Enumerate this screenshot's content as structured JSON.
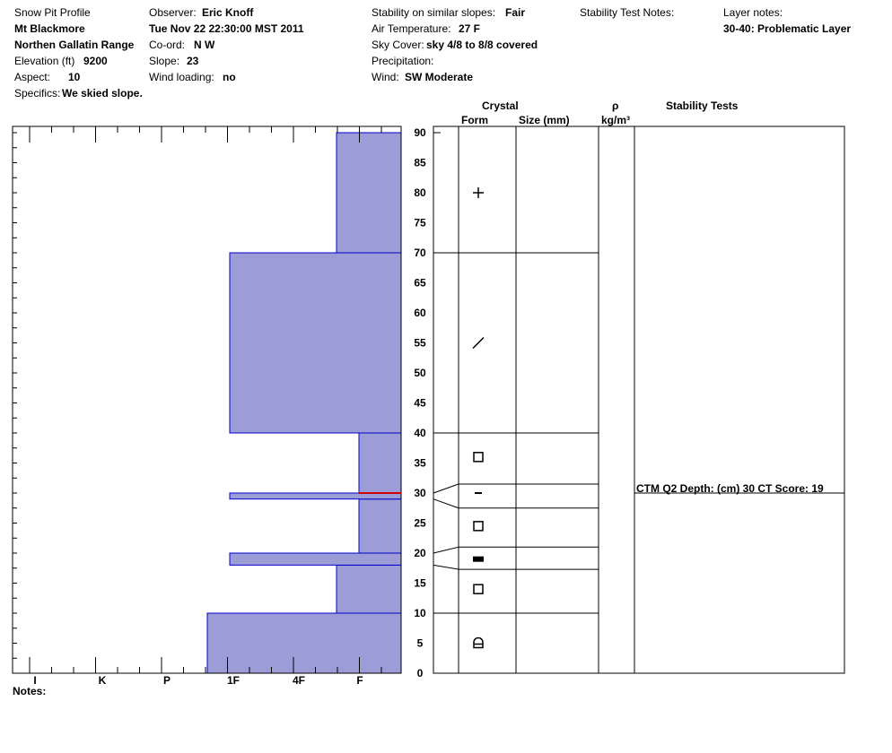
{
  "header": {
    "title": "Snow Pit Profile",
    "location": "Mt Blackmore",
    "range": "Northen Gallatin Range",
    "elevation_label": "Elevation (ft)",
    "elevation_value": "9200",
    "aspect_label": "Aspect:",
    "aspect_value": "10",
    "specifics_label": "Specifics:",
    "specifics_value": "We skied slope.",
    "observer_label": "Observer:",
    "observer_value": "Eric Knoff",
    "datetime": "Tue Nov 22 22:30:00 MST 2011",
    "coord_label": "Co-ord:",
    "coord_value": "N  W",
    "slope_label": "Slope:",
    "slope_value": "23",
    "wind_loading_label": "Wind loading:",
    "wind_loading_value": "no",
    "stability_label": "Stability on similar slopes:",
    "stability_value": "Fair",
    "air_temp_label": "Air Temperature:",
    "air_temp_value": "27 F",
    "sky_label": "Sky Cover:",
    "sky_value": "sky 4/8 to 8/8 covered",
    "precip_label": "Precipitation:",
    "precip_value": "",
    "wind_label": "Wind:",
    "wind_value": "SW Moderate",
    "stability_notes_label": "Stability Test Notes:",
    "layer_notes_label": "Layer notes:",
    "layer_notes_value": "30-40: Problematic Layer"
  },
  "table_headers": {
    "crystal": "Crystal",
    "form": "Form",
    "size": "Size (mm)",
    "rho": "ρ",
    "density_unit": "kg/m³",
    "stability_tests": "Stability Tests"
  },
  "notes_label": "Notes:",
  "stability_test_text": "CTM Q2 Depth: (cm) 30 CT Score: 19",
  "colors": {
    "hardness_fill": "#9c9cd6",
    "hardness_stroke": "#0000cc",
    "marker": "#cc0000"
  },
  "chart_data": {
    "type": "bar",
    "orientation": "horizontal-step",
    "x_categories": [
      "I",
      "K",
      "P",
      "1F",
      "4F",
      "F"
    ],
    "y_range": [
      0,
      90
    ],
    "y_ticks": [
      0,
      5,
      10,
      15,
      20,
      25,
      30,
      35,
      40,
      45,
      50,
      55,
      60,
      65,
      70,
      75,
      80,
      85,
      90
    ],
    "layers": [
      {
        "bottom": 0,
        "top": 10,
        "hardness": "1F-"
      },
      {
        "bottom": 10,
        "top": 18,
        "hardness": "4F-F"
      },
      {
        "bottom": 18,
        "top": 20,
        "hardness": "1F"
      },
      {
        "bottom": 20,
        "top": 29,
        "hardness": "F"
      },
      {
        "bottom": 29,
        "top": 30,
        "hardness": "1F"
      },
      {
        "bottom": 30,
        "top": 40,
        "hardness": "F"
      },
      {
        "bottom": 40,
        "top": 70,
        "hardness": "1F"
      },
      {
        "bottom": 70,
        "top": 90,
        "hardness": "4F-F"
      }
    ],
    "failure_marker_depth": 30,
    "crystal_forms": [
      {
        "depth": 80,
        "form": "precipitation-particles"
      },
      {
        "depth": 55,
        "form": "decomposing-fragments"
      },
      {
        "depth": 36,
        "form": "faceted-crystals"
      },
      {
        "depth": 30,
        "form": "ice-crust"
      },
      {
        "depth": 24.5,
        "form": "faceted-crystals"
      },
      {
        "depth": 19,
        "form": "melt-freeze-crust"
      },
      {
        "depth": 14,
        "form": "faceted-crystals"
      },
      {
        "depth": 5,
        "form": "depth-hoar"
      }
    ],
    "layer_boundaries": [
      70,
      40,
      31.5,
      27.5,
      21,
      17.3,
      10
    ]
  }
}
